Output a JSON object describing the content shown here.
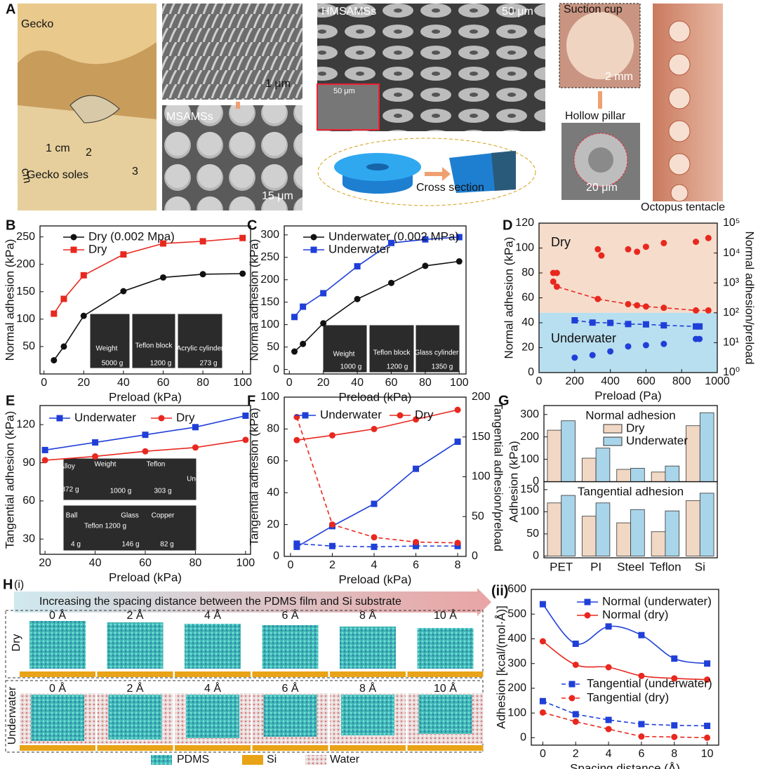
{
  "panel_a": {
    "label": "A",
    "gecko": "Gecko",
    "gecko_soles": "Gecko soles",
    "ruler_1cm": "1 cm",
    "ruler_2": "2",
    "ruler_3": "3",
    "ruler_cm": "cm",
    "scale_1um": "1 μm",
    "msamss": "MSAMSs",
    "scale_15um": "15 μm",
    "hmsamss": "HMSAMSs",
    "scale_50um": "50 μm",
    "inset_scale_50um": "50 μm",
    "suction_cup": "Suction cup",
    "scale_2mm": "2 mm",
    "hollow_pillar": "Hollow pillar",
    "scale_20um": "20 μm",
    "octopus": "Octopus tentacle",
    "cross_section": "Cross section"
  },
  "panel_h": {
    "label": "H",
    "sub": "(i)",
    "banner": "Increasing the spacing distance between the PDMS film and Si substrate",
    "rows": [
      "Dry",
      "Underwater"
    ],
    "distances": [
      "0 Å",
      "2 Å",
      "4 Å",
      "6 Å",
      "8 Å",
      "10 Å"
    ],
    "legend": [
      "PDMS",
      "Si",
      "Water"
    ]
  },
  "chart_data": [
    {
      "type": "line",
      "panel_label": "B",
      "x_label": "Preload (kPa)",
      "y_label": "Normal adhesion (kPa)",
      "x": [
        5,
        10,
        20,
        40,
        60,
        80,
        100
      ],
      "xlim": [
        -2,
        104
      ],
      "xticks": [
        0,
        20,
        40,
        60,
        80,
        100
      ],
      "ylim": [
        0,
        270
      ],
      "yticks": [
        50,
        100,
        150,
        200,
        250
      ],
      "series": [
        {
          "name": "Dry (0.002 Mpa)",
          "color": "#111111",
          "marker": "circle",
          "values": [
            25,
            50,
            106,
            151,
            176,
            182,
            183
          ]
        },
        {
          "name": "Dry",
          "color": "#e8281f",
          "marker": "square",
          "values": [
            110,
            137,
            180,
            218,
            238,
            242,
            248
          ]
        }
      ],
      "annotations": [
        "Weight",
        "5000 g",
        "Teflon block",
        "1200 g",
        "Acrylic cylinder",
        "273 g"
      ]
    },
    {
      "type": "line",
      "panel_label": "C",
      "x_label": "Preload (kPa)",
      "y_label": "Normal adhesion (kPa)",
      "x": [
        3,
        8,
        20,
        40,
        60,
        80,
        100
      ],
      "xlim": [
        -3,
        104
      ],
      "xticks": [
        0,
        20,
        40,
        60,
        80,
        100
      ],
      "ylim": [
        -10,
        320
      ],
      "yticks": [
        0,
        50,
        100,
        150,
        200,
        250,
        300
      ],
      "series": [
        {
          "name": "Underwater (0.002 MPa)",
          "color": "#111111",
          "marker": "circle",
          "values": [
            40,
            57,
            103,
            157,
            193,
            231,
            241
          ]
        },
        {
          "name": "Underwater",
          "color": "#1f3fd8",
          "marker": "square",
          "values": [
            117,
            140,
            170,
            230,
            282,
            290,
            295
          ]
        }
      ],
      "annotations": [
        "Weight",
        "1000 g",
        "Teflon block",
        "1200 g",
        "Glass cylinder",
        "1350 g"
      ]
    },
    {
      "type": "line",
      "panel_label": "D",
      "x_label": "Preload (Pa)",
      "y_label": "Normal adhesion (kPa)",
      "y2_label": "Normal adhesion/preload",
      "xlim": [
        0,
        1000
      ],
      "xticks": [
        0,
        200,
        400,
        600,
        800,
        1000
      ],
      "ylim": [
        0,
        120
      ],
      "yticks": [
        0,
        20,
        40,
        60,
        80,
        100,
        120
      ],
      "y2log": true,
      "y2lim": [
        1,
        100000
      ],
      "y2ticks": [
        {
          "value": 1,
          "label": "10⁰"
        },
        {
          "value": 10,
          "label": "10¹"
        },
        {
          "value": 100,
          "label": "10²"
        },
        {
          "value": 1000,
          "label": "10³"
        },
        {
          "value": 10000,
          "label": "10⁴"
        },
        {
          "value": 100000,
          "label": "10⁵"
        }
      ],
      "regions": [
        {
          "name": "Dry",
          "color": "#f6dccb",
          "text_color": "#e8281f",
          "range": [
            48,
            120
          ]
        },
        {
          "name": "Underwater",
          "color": "#b8dff0",
          "text_color": "#1f3fd8",
          "range": [
            0,
            48
          ]
        }
      ],
      "series": [
        {
          "color": "#e8281f",
          "marker": "circle",
          "line": false,
          "x": [
            80,
            100,
            330,
            350,
            500,
            550,
            600,
            700,
            880,
            950
          ],
          "values": [
            80,
            80,
            99,
            94,
            99,
            97,
            101,
            104,
            105,
            108
          ]
        },
        {
          "color": "#e8281f",
          "marker": "circle",
          "dash": true,
          "axis": "y2",
          "x": [
            80,
            100,
            330,
            500,
            550,
            600,
            700,
            880,
            950
          ],
          "values": [
            1100,
            750,
            290,
            195,
            178,
            162,
            147,
            120,
            120
          ]
        },
        {
          "color": "#1f3fd8",
          "marker": "circle",
          "line": false,
          "x": [
            200,
            300,
            400,
            500,
            600,
            700,
            880,
            900
          ],
          "values": [
            12,
            14,
            17,
            21,
            22,
            23,
            27,
            27
          ]
        },
        {
          "color": "#1f3fd8",
          "marker": "square",
          "dash": true,
          "axis": "y2",
          "x": [
            200,
            300,
            400,
            500,
            600,
            700,
            880,
            900
          ],
          "values": [
            56,
            47,
            46,
            42,
            41,
            38,
            35,
            35
          ]
        }
      ]
    },
    {
      "type": "line",
      "panel_label": "E",
      "x_label": "Preload (kPa)",
      "y_label": "Tangential adhesion (kPa)",
      "x": [
        20,
        40,
        60,
        80,
        100
      ],
      "xlim": [
        18,
        102
      ],
      "xticks": [
        20,
        40,
        60,
        80,
        100
      ],
      "ylim": [
        18,
        135
      ],
      "yticks": [
        30,
        60,
        90,
        120
      ],
      "series": [
        {
          "name": "Underwater",
          "color": "#1f3fd8",
          "marker": "square",
          "values": [
            100,
            106,
            112,
            118,
            127
          ]
        },
        {
          "name": "Dry",
          "color": "#e8281f",
          "marker": "circle",
          "values": [
            92,
            95,
            99,
            102,
            108
          ]
        }
      ],
      "annotations": [
        "Alloy",
        "872 g",
        "Weight",
        "1000 g",
        "Teflon",
        "303 g",
        "Underwater",
        "Ball",
        "4 g",
        "Teflon 1200 g",
        "Glass",
        "146 g",
        "Copper",
        "82 g",
        "Dry"
      ]
    },
    {
      "type": "line",
      "panel_label": "F",
      "x_label": "Preload (kPa)",
      "y_label": "Tangential adhesion (kPa)",
      "y2_label": "Tangential adhesion/preload",
      "x": [
        0.3,
        2,
        4,
        6,
        8
      ],
      "xlim": [
        -0.3,
        8.4
      ],
      "xticks": [
        0,
        2,
        4,
        6,
        8
      ],
      "ylim": [
        0,
        100
      ],
      "yticks": [
        0,
        20,
        40,
        60,
        80,
        100
      ],
      "y2lim": [
        0,
        200
      ],
      "y2ticks": [
        0,
        50,
        100,
        150,
        200
      ],
      "series": [
        {
          "name": "Underwater",
          "color": "#1f3fd8",
          "marker": "square",
          "values": [
            6,
            19,
            33,
            55,
            72
          ]
        },
        {
          "name": "Dry",
          "color": "#e8281f",
          "marker": "circle",
          "values": [
            73,
            76,
            80,
            86,
            92
          ]
        },
        {
          "color": "#1f3fd8",
          "marker": "square",
          "dash": true,
          "axis": "y2",
          "values": [
            16,
            13,
            12,
            13,
            13
          ]
        },
        {
          "color": "#e8281f",
          "marker": "circle",
          "dash": true,
          "axis": "y2",
          "values": [
            175,
            40,
            24,
            18,
            17
          ]
        }
      ]
    },
    {
      "type": "bar",
      "panel_label": "G",
      "y_label": "Adhesion (kPa)",
      "categories": [
        "PET",
        "PI",
        "Steel",
        "Teflon",
        "Si"
      ],
      "subplots": [
        {
          "title": "Normal adhesion",
          "ylim": [
            0,
            340
          ],
          "yticks": [
            0,
            100,
            200,
            300
          ],
          "series": [
            {
              "name": "Dry",
              "color": "#f1d8c4",
              "values": [
                230,
                105,
                55,
                43,
                250
              ]
            },
            {
              "name": "Underwater",
              "color": "#a9d5ea",
              "values": [
                272,
                150,
                60,
                70,
                308
              ]
            }
          ]
        },
        {
          "title": "Tangential adhesion",
          "ylim": [
            -4,
            168
          ],
          "yticks": [
            0,
            50,
            100,
            150
          ],
          "series": [
            {
              "color": "#f1d8c4",
              "values": [
                120,
                90,
                75,
                55,
                125
              ]
            },
            {
              "color": "#a9d5ea",
              "values": [
                137,
                120,
                105,
                102,
                142
              ]
            }
          ]
        }
      ]
    },
    {
      "type": "line",
      "panel_label": "(ii)",
      "x_label": "Spacing distance (Å)",
      "y_label": "Adhesion [kcal/(mol·Å)]",
      "x": [
        0,
        2,
        4,
        6,
        8,
        10
      ],
      "xlim": [
        -0.7,
        10.7
      ],
      "xticks": [
        0,
        2,
        4,
        6,
        8,
        10
      ],
      "ylim": [
        -30,
        600
      ],
      "yticks": [
        0,
        100,
        200,
        300,
        400,
        500,
        600
      ],
      "series": [
        {
          "name": "Normal (underwater)",
          "color": "#1f3fd8",
          "marker": "square",
          "smooth": true,
          "values": [
            540,
            380,
            450,
            415,
            320,
            300
          ]
        },
        {
          "name": "Normal (dry)",
          "color": "#e8281f",
          "marker": "circle",
          "smooth": true,
          "values": [
            390,
            295,
            285,
            250,
            240,
            235
          ]
        },
        {
          "name": "Tangential (underwater)",
          "color": "#1f3fd8",
          "marker": "square",
          "dash": true,
          "values": [
            148,
            95,
            72,
            55,
            50,
            48
          ]
        },
        {
          "name": "Tangential (dry)",
          "color": "#e8281f",
          "marker": "circle",
          "dash": true,
          "values": [
            102,
            65,
            35,
            5,
            3,
            0
          ]
        }
      ]
    }
  ]
}
